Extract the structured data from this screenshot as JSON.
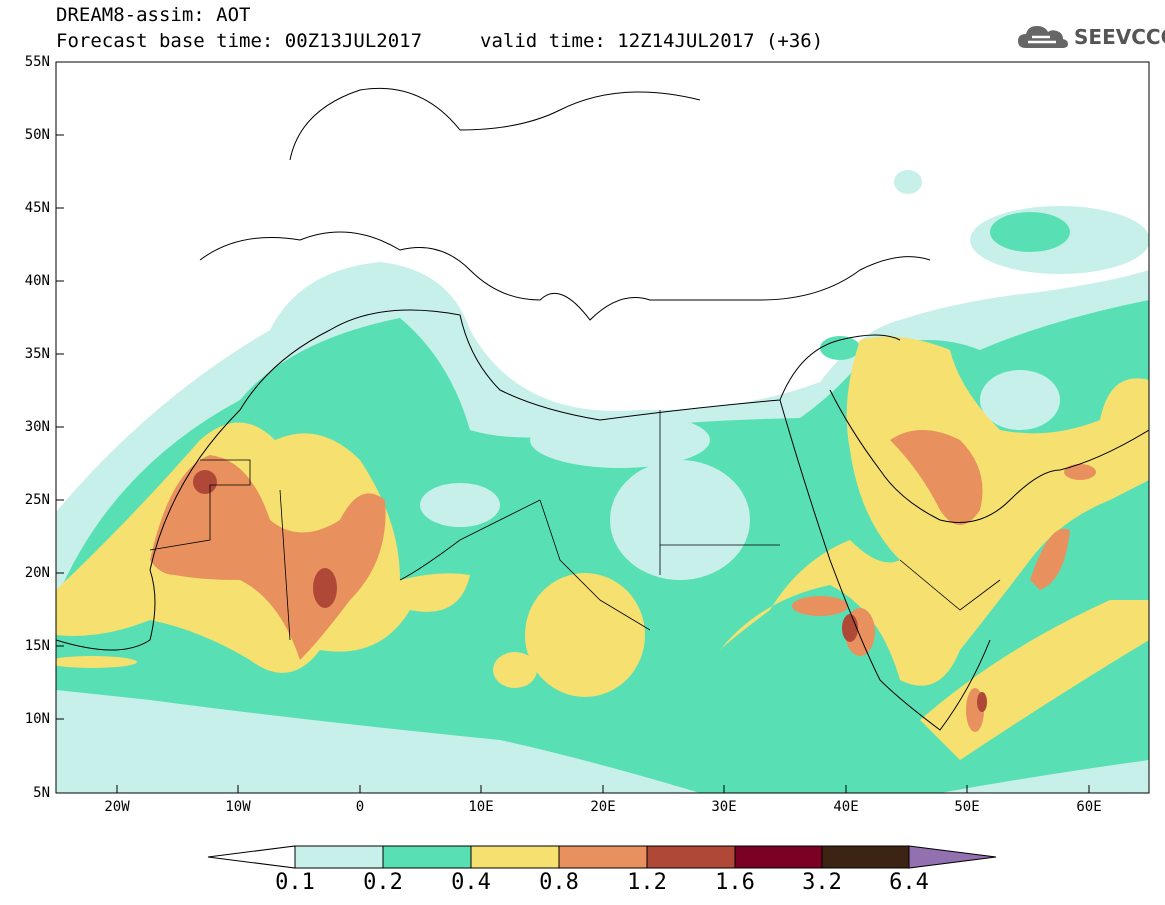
{
  "title": {
    "line1": "DREAM8-assim: AOT",
    "line2": "Forecast base time: 00Z13JUL2017",
    "valid": "valid time: 12Z14JUL2017 (+36)"
  },
  "logo": {
    "text": "SEEVCCC",
    "icon": "cloud-icon"
  },
  "map": {
    "variable": "AOT",
    "lon_range": [
      -25,
      65
    ],
    "lat_range": [
      5,
      55
    ],
    "lat_labels": [
      "55N",
      "50N",
      "45N",
      "40N",
      "35N",
      "30N",
      "25N",
      "20N",
      "15N",
      "10N",
      "5N"
    ],
    "lon_labels": [
      "20W",
      "10W",
      "0",
      "10E",
      "20E",
      "30E",
      "40E",
      "50E",
      "60E"
    ]
  },
  "colorbar": {
    "labels": [
      "0.1",
      "0.2",
      "0.4",
      "0.8",
      "1.2",
      "1.6",
      "3.2",
      "6.4"
    ],
    "colors": [
      "#c8f0ea",
      "#58e0b4",
      "#f5e070",
      "#e8905e",
      "#b04838",
      "#7a0024",
      "#3c2414",
      "#9370b0"
    ]
  }
}
